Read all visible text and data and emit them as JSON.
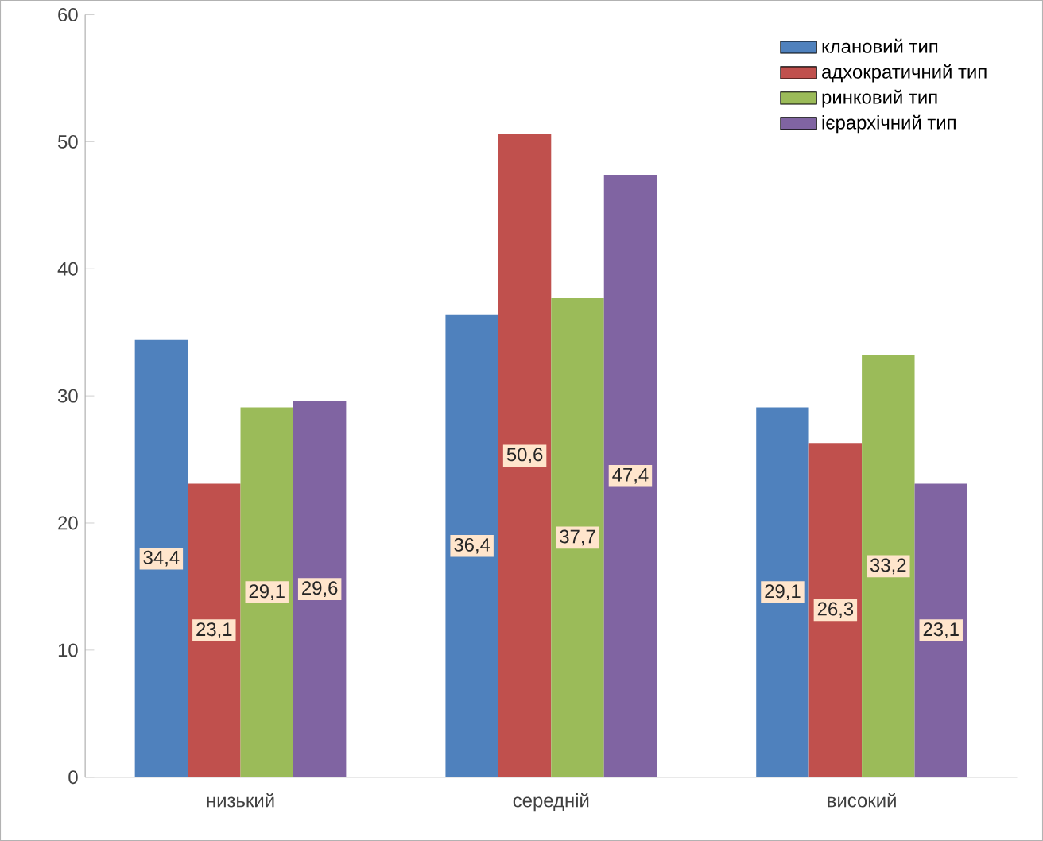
{
  "chart_data": {
    "type": "bar",
    "categories": [
      "низький",
      "середній",
      "високий"
    ],
    "series": [
      {
        "name": "клановий тип",
        "color": "#4f81bd",
        "values": [
          34.4,
          36.4,
          29.1
        ],
        "value_labels": [
          "34,4",
          "36,4",
          "29,1"
        ]
      },
      {
        "name": "адхократичний тип",
        "color": "#c0504d",
        "values": [
          23.1,
          50.6,
          26.3
        ],
        "value_labels": [
          "23,1",
          "50,6",
          "26,3"
        ]
      },
      {
        "name": "ринковий тип",
        "color": "#9bbb59",
        "values": [
          29.1,
          37.7,
          33.2
        ],
        "value_labels": [
          "29,1",
          "37,7",
          "33,2"
        ]
      },
      {
        "name": "ієрархічний тип",
        "color": "#8064a2",
        "values": [
          29.6,
          47.4,
          23.1
        ],
        "value_labels": [
          "29,6",
          "47,4",
          "23,1"
        ]
      }
    ],
    "ylim": [
      0,
      60
    ],
    "yticks": [
      0,
      10,
      20,
      30,
      40,
      50,
      60
    ],
    "legend": "top right",
    "grid": false
  }
}
